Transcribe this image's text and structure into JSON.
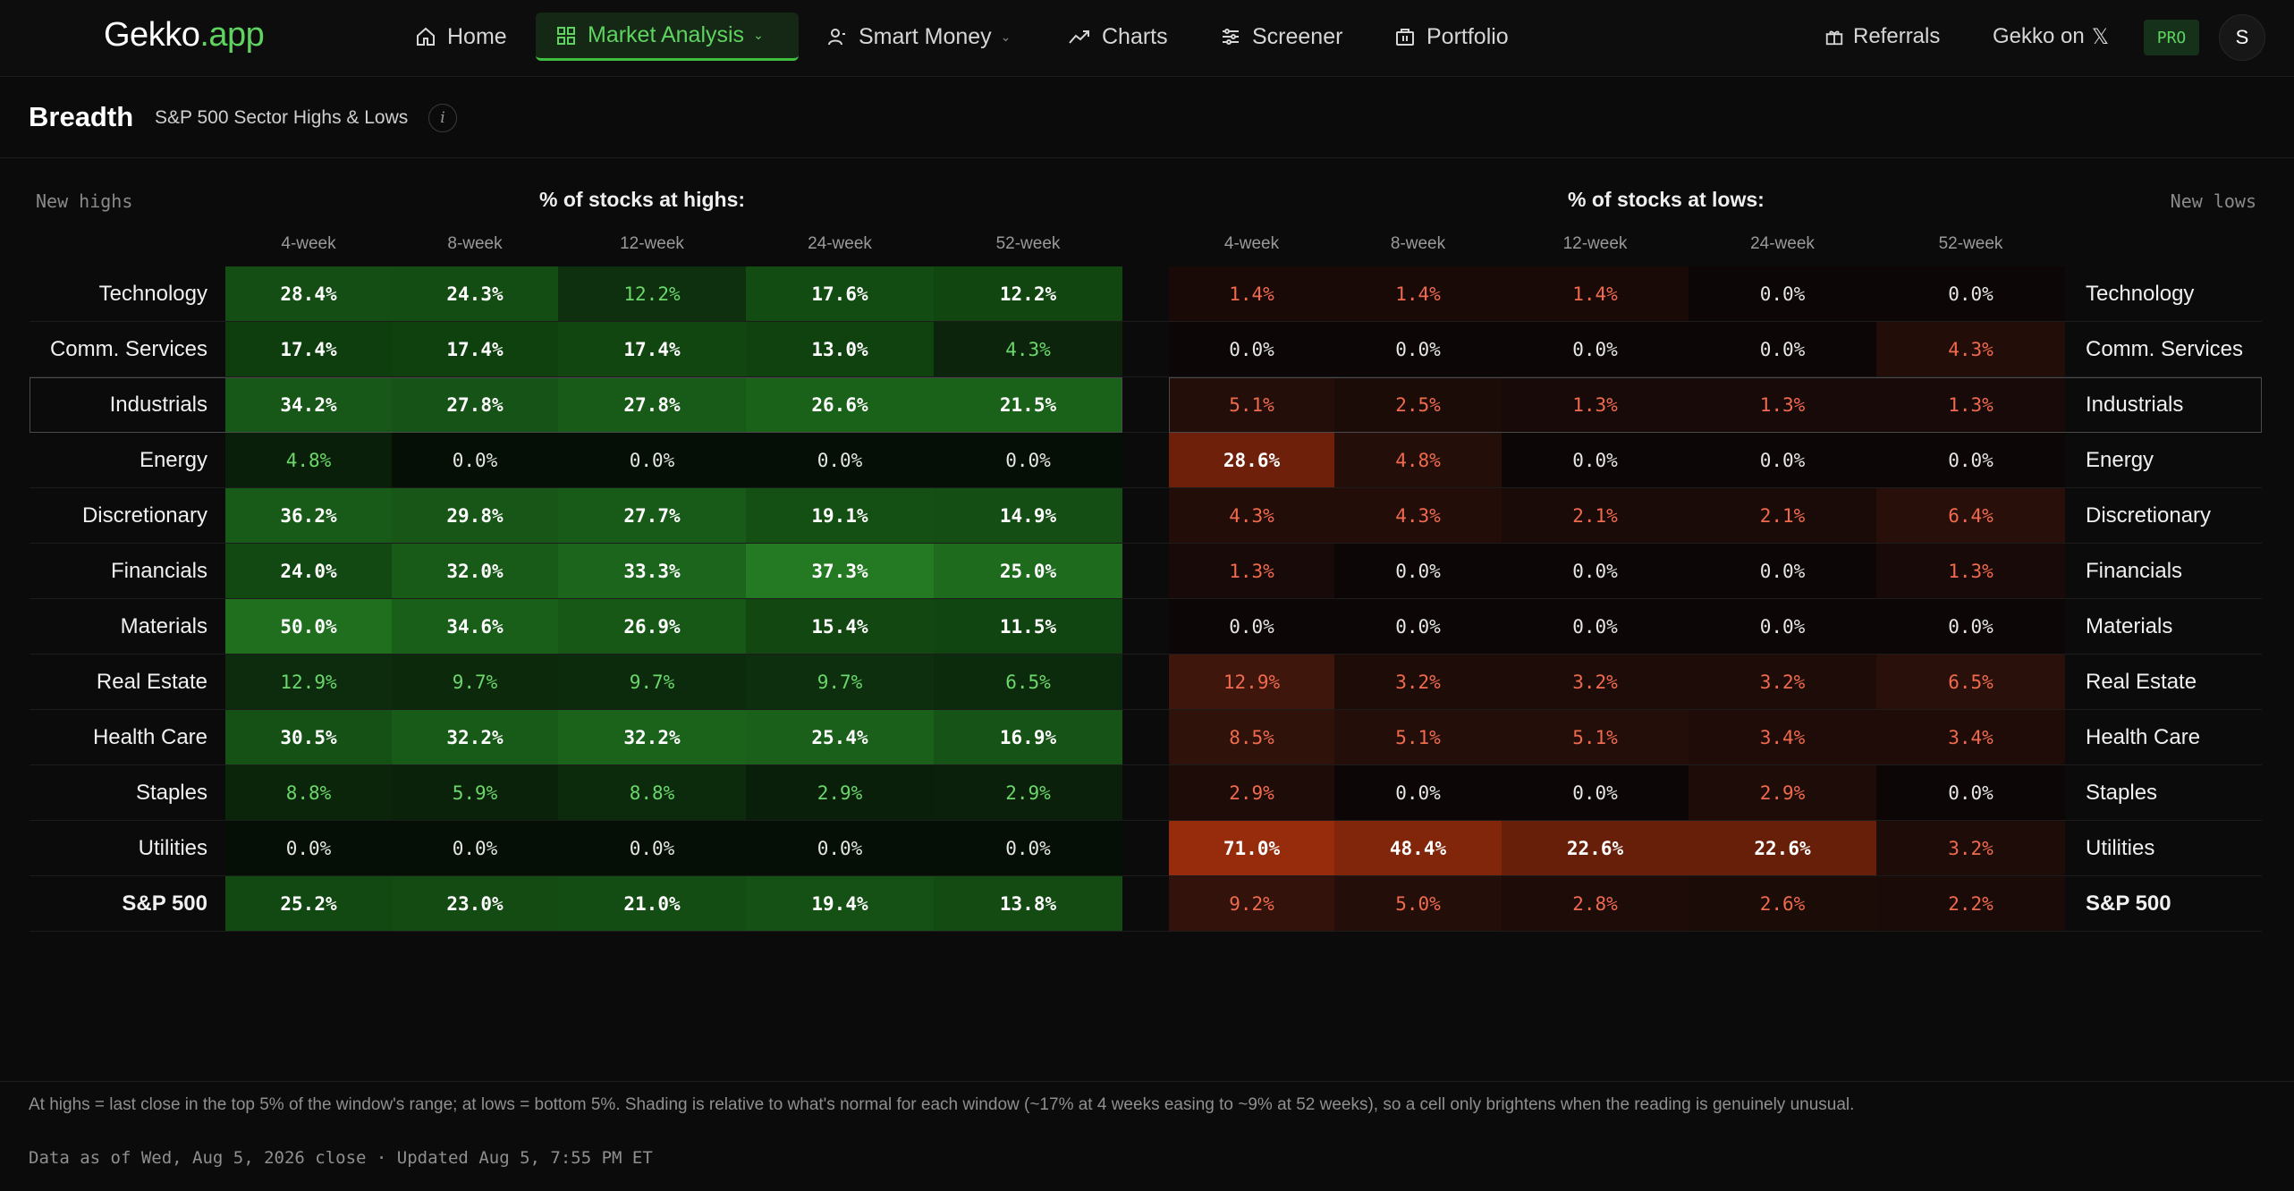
{
  "nav": {
    "logo_main": "Gekko",
    "logo_suffix": ".app",
    "items": [
      {
        "label": "Home",
        "icon": "home-icon"
      },
      {
        "label": "Market Analysis",
        "icon": "grid-icon",
        "active": true
      },
      {
        "label": "Smart Money",
        "icon": "person-icon"
      },
      {
        "label": "Charts",
        "icon": "trend-icon"
      },
      {
        "label": "Screener",
        "icon": "sliders-icon"
      },
      {
        "label": "Portfolio",
        "icon": "briefcase-icon"
      }
    ],
    "referrals": "Referrals",
    "gekko_on": "Gekko on",
    "x_glyph": "𝕏",
    "pro_badge": "PRO",
    "avatar_initial": "S"
  },
  "header": {
    "title": "Breadth",
    "subtitle": "S&P 500 Sector Highs & Lows",
    "info_glyph": "i"
  },
  "table": {
    "new_highs_label": "New highs",
    "new_lows_label": "New lows",
    "highs_title": "% of stocks at highs:",
    "lows_title": "% of stocks at lows:",
    "windows": [
      "4-week",
      "8-week",
      "12-week",
      "24-week",
      "52-week"
    ],
    "rows": [
      {
        "sector": "Technology",
        "highs": [
          "28.4%",
          "24.3%",
          "12.2%",
          "17.6%",
          "12.2%"
        ],
        "lows": [
          "1.4%",
          "1.4%",
          "1.4%",
          "0.0%",
          "0.0%"
        ]
      },
      {
        "sector": "Comm. Services",
        "highs": [
          "17.4%",
          "17.4%",
          "17.4%",
          "13.0%",
          "4.3%"
        ],
        "lows": [
          "0.0%",
          "0.0%",
          "0.0%",
          "0.0%",
          "4.3%"
        ]
      },
      {
        "sector": "Industrials",
        "highs": [
          "34.2%",
          "27.8%",
          "27.8%",
          "26.6%",
          "21.5%"
        ],
        "lows": [
          "5.1%",
          "2.5%",
          "1.3%",
          "1.3%",
          "1.3%"
        ],
        "selected": true
      },
      {
        "sector": "Energy",
        "highs": [
          "4.8%",
          "0.0%",
          "0.0%",
          "0.0%",
          "0.0%"
        ],
        "lows": [
          "28.6%",
          "4.8%",
          "0.0%",
          "0.0%",
          "0.0%"
        ]
      },
      {
        "sector": "Discretionary",
        "highs": [
          "36.2%",
          "29.8%",
          "27.7%",
          "19.1%",
          "14.9%"
        ],
        "lows": [
          "4.3%",
          "4.3%",
          "2.1%",
          "2.1%",
          "6.4%"
        ]
      },
      {
        "sector": "Financials",
        "highs": [
          "24.0%",
          "32.0%",
          "33.3%",
          "37.3%",
          "25.0%"
        ],
        "lows": [
          "1.3%",
          "0.0%",
          "0.0%",
          "0.0%",
          "1.3%"
        ]
      },
      {
        "sector": "Materials",
        "highs": [
          "50.0%",
          "34.6%",
          "26.9%",
          "15.4%",
          "11.5%"
        ],
        "lows": [
          "0.0%",
          "0.0%",
          "0.0%",
          "0.0%",
          "0.0%"
        ]
      },
      {
        "sector": "Real Estate",
        "highs": [
          "12.9%",
          "9.7%",
          "9.7%",
          "9.7%",
          "6.5%"
        ],
        "lows": [
          "12.9%",
          "3.2%",
          "3.2%",
          "3.2%",
          "6.5%"
        ]
      },
      {
        "sector": "Health Care",
        "highs": [
          "30.5%",
          "32.2%",
          "32.2%",
          "25.4%",
          "16.9%"
        ],
        "lows": [
          "8.5%",
          "5.1%",
          "5.1%",
          "3.4%",
          "3.4%"
        ]
      },
      {
        "sector": "Staples",
        "highs": [
          "8.8%",
          "5.9%",
          "8.8%",
          "2.9%",
          "2.9%"
        ],
        "lows": [
          "2.9%",
          "0.0%",
          "0.0%",
          "2.9%",
          "0.0%"
        ]
      },
      {
        "sector": "Utilities",
        "highs": [
          "0.0%",
          "0.0%",
          "0.0%",
          "0.0%",
          "0.0%"
        ],
        "lows": [
          "71.0%",
          "48.4%",
          "22.6%",
          "22.6%",
          "3.2%"
        ]
      },
      {
        "sector": "S&P 500",
        "highs": [
          "25.2%",
          "23.0%",
          "21.0%",
          "19.4%",
          "13.8%"
        ],
        "lows": [
          "9.2%",
          "5.0%",
          "2.8%",
          "2.6%",
          "2.2%"
        ],
        "total": true
      }
    ],
    "colors": {
      "highs_bg": "#0e3d0e",
      "highs_strong_bg": "#1b6a1b",
      "lows_bg": "#3b120a",
      "lows_strong_bg": "#8a2a0c",
      "accent_green": "#5fd35f",
      "accent_red": "#f06a4e"
    }
  },
  "footer": {
    "note": "At highs = last close in the top 5% of the window's range; at lows = bottom 5%. Shading is relative to what's normal for each window (~17% at 4 weeks easing to ~9% at 52 weeks), so a cell only brightens when the reading is genuinely unusual.",
    "timestamp": "Data as of Wed, Aug 5, 2026 close · Updated Aug 5, 7:55 PM ET"
  }
}
